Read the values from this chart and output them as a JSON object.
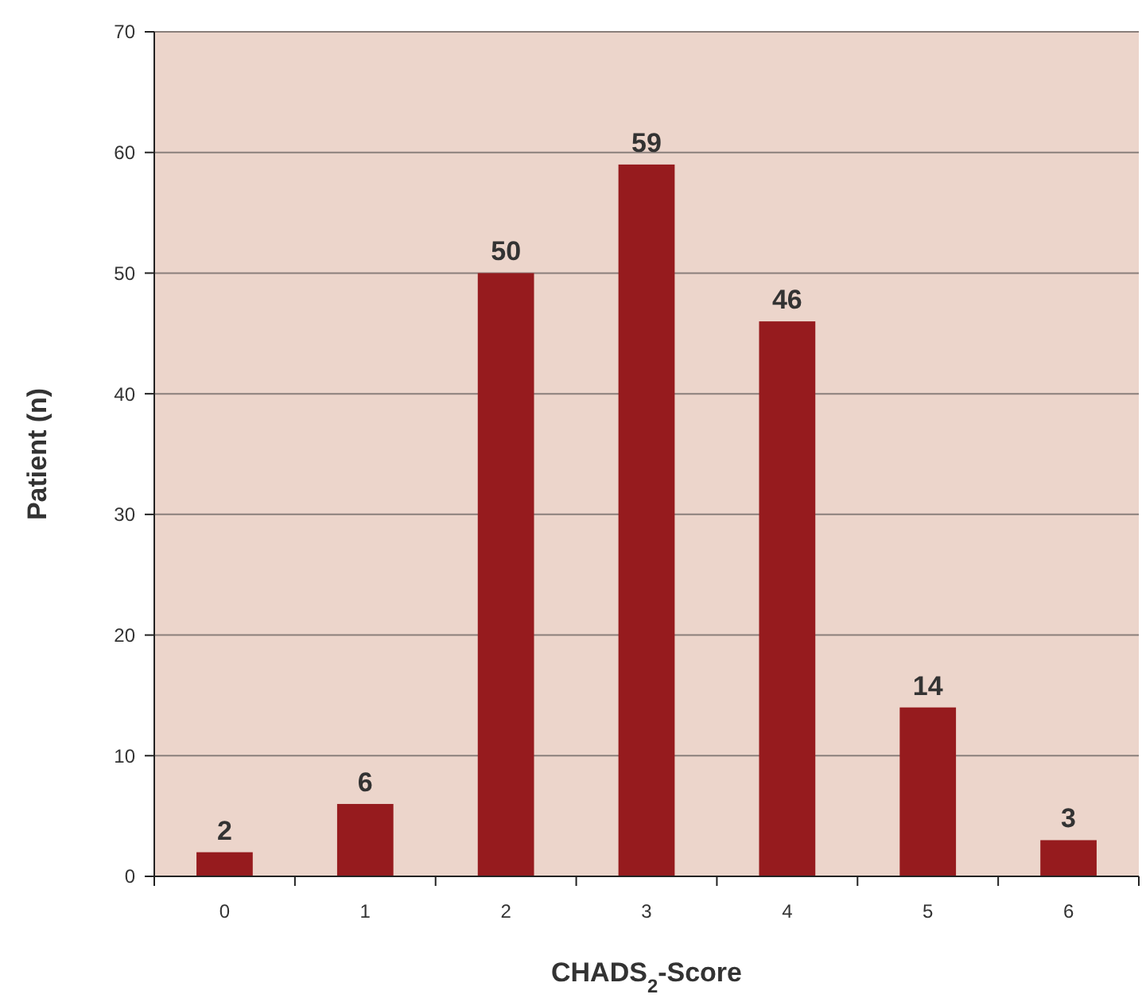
{
  "chart_data": {
    "type": "bar",
    "xlabel": "CHADS$_{2}$-Score",
    "ylabel": "Patient (n)",
    "categories": [
      "0",
      "1",
      "2",
      "3",
      "4",
      "5",
      "6"
    ],
    "values": [
      2,
      6,
      50,
      59,
      46,
      14,
      3
    ],
    "color": "#961b1e",
    "ylim": [
      0,
      70
    ],
    "yticks": [
      0,
      10,
      20,
      30,
      40,
      50,
      60,
      70
    ],
    "grid": "y",
    "data_labels": true
  }
}
